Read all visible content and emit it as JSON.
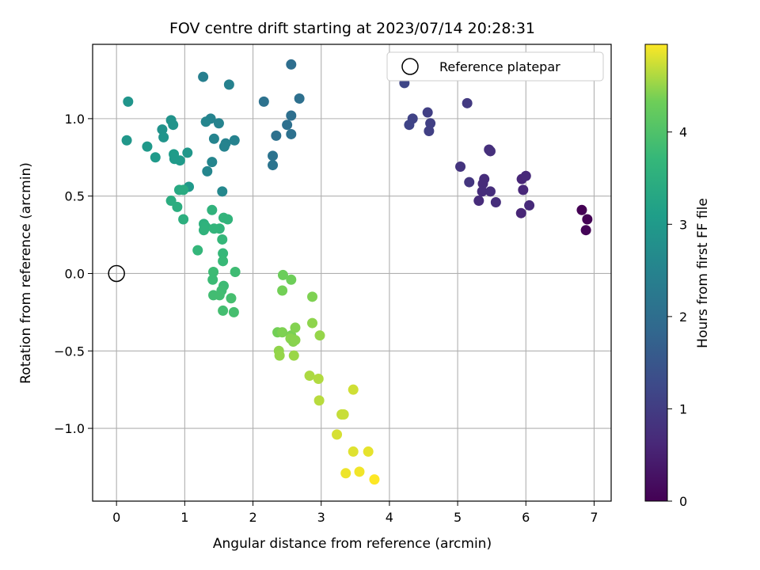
{
  "chart_data": {
    "type": "scatter",
    "title": "FOV centre drift starting at 2023/07/14 20:28:31",
    "xlabel": "Angular distance from reference (arcmin)",
    "ylabel": "Rotation from reference (arcmin)",
    "xlim": [
      -0.35,
      7.25
    ],
    "ylim": [
      -1.47,
      1.48
    ],
    "x_ticks": [
      0,
      1,
      2,
      3,
      4,
      5,
      6,
      7
    ],
    "x_tick_labels": [
      "0",
      "1",
      "2",
      "3",
      "4",
      "5",
      "6",
      "7"
    ],
    "y_ticks": [
      -1.0,
      -0.5,
      0.0,
      0.5,
      1.0
    ],
    "y_tick_labels": [
      "−1.0",
      "−0.5",
      "0.0",
      "0.5",
      "1.0"
    ],
    "grid": true,
    "legend": {
      "placement": "top-right",
      "entries": [
        "Reference platepar"
      ]
    },
    "reference_point": {
      "x": 0,
      "y": 0,
      "marker": "open-circle"
    },
    "colorbar": {
      "label": "Hours from first FF file",
      "colormap": "viridis",
      "range": [
        0,
        4.95
      ],
      "ticks": [
        0,
        1,
        2,
        3,
        4
      ],
      "tick_labels": [
        "0",
        "1",
        "2",
        "3",
        "4"
      ]
    },
    "series": [
      {
        "points": [
          [
            6.82,
            0.41,
            0.0
          ],
          [
            6.9,
            0.35,
            0.02
          ],
          [
            6.88,
            0.28,
            0.05
          ],
          [
            5.94,
            0.61,
            0.6
          ],
          [
            6.0,
            0.63,
            0.65
          ],
          [
            5.96,
            0.54,
            0.62
          ],
          [
            5.93,
            0.39,
            0.58
          ],
          [
            6.05,
            0.44,
            0.66
          ],
          [
            5.46,
            0.8,
            0.75
          ],
          [
            5.48,
            0.79,
            0.77
          ],
          [
            5.39,
            0.61,
            0.72
          ],
          [
            5.37,
            0.58,
            0.7
          ],
          [
            5.36,
            0.53,
            0.71
          ],
          [
            5.48,
            0.53,
            0.73
          ],
          [
            5.31,
            0.47,
            0.69
          ],
          [
            5.56,
            0.46,
            0.74
          ],
          [
            5.04,
            0.69,
            0.85
          ],
          [
            5.17,
            0.59,
            0.88
          ],
          [
            5.14,
            1.1,
            0.95
          ],
          [
            4.56,
            1.04,
            1.05
          ],
          [
            4.6,
            0.97,
            1.07
          ],
          [
            4.58,
            0.92,
            1.06
          ],
          [
            4.34,
            1.0,
            1.12
          ],
          [
            4.29,
            0.96,
            1.15
          ],
          [
            4.22,
            1.23,
            1.18
          ],
          [
            2.56,
            1.35,
            2.0
          ],
          [
            2.68,
            1.13,
            2.05
          ],
          [
            2.56,
            1.02,
            2.02
          ],
          [
            2.5,
            0.96,
            2.05
          ],
          [
            2.34,
            0.89,
            2.08
          ],
          [
            2.56,
            0.9,
            2.07
          ],
          [
            2.16,
            1.11,
            2.1
          ],
          [
            2.29,
            0.76,
            2.12
          ],
          [
            2.29,
            0.7,
            2.15
          ],
          [
            1.27,
            1.27,
            2.4
          ],
          [
            1.65,
            1.22,
            2.45
          ],
          [
            1.38,
            1.0,
            2.5
          ],
          [
            1.31,
            0.98,
            2.55
          ],
          [
            1.5,
            0.97,
            2.5
          ],
          [
            1.43,
            0.87,
            2.52
          ],
          [
            1.6,
            0.84,
            2.48
          ],
          [
            1.73,
            0.86,
            2.47
          ],
          [
            1.58,
            0.82,
            2.5
          ],
          [
            1.4,
            0.72,
            2.55
          ],
          [
            1.33,
            0.66,
            2.56
          ],
          [
            1.55,
            0.53,
            2.6
          ],
          [
            0.17,
            1.11,
            2.9
          ],
          [
            0.8,
            0.99,
            2.85
          ],
          [
            0.67,
            0.93,
            2.83
          ],
          [
            0.83,
            0.96,
            2.87
          ],
          [
            0.69,
            0.88,
            2.88
          ],
          [
            0.15,
            0.86,
            2.95
          ],
          [
            0.45,
            0.82,
            2.98
          ],
          [
            0.57,
            0.75,
            3.0
          ],
          [
            0.84,
            0.77,
            3.05
          ],
          [
            0.85,
            0.74,
            3.03
          ],
          [
            0.93,
            0.73,
            3.02
          ],
          [
            1.04,
            0.78,
            2.95
          ],
          [
            1.06,
            0.56,
            2.98
          ],
          [
            0.92,
            0.54,
            3.35
          ],
          [
            0.98,
            0.54,
            3.4
          ],
          [
            0.8,
            0.47,
            3.45
          ],
          [
            0.89,
            0.43,
            3.47
          ],
          [
            0.98,
            0.35,
            3.5
          ],
          [
            1.4,
            0.41,
            3.6
          ],
          [
            1.57,
            0.36,
            3.65
          ],
          [
            1.63,
            0.35,
            3.62
          ],
          [
            1.28,
            0.32,
            3.55
          ],
          [
            1.31,
            0.3,
            3.58
          ],
          [
            1.28,
            0.28,
            3.6
          ],
          [
            1.51,
            0.29,
            3.62
          ],
          [
            1.43,
            0.29,
            3.65
          ],
          [
            1.55,
            0.22,
            3.7
          ],
          [
            1.19,
            0.15,
            3.68
          ],
          [
            1.56,
            0.13,
            3.72
          ],
          [
            1.56,
            0.08,
            3.75
          ],
          [
            1.42,
            0.01,
            3.8
          ],
          [
            1.74,
            0.01,
            3.82
          ],
          [
            1.41,
            -0.04,
            3.78
          ],
          [
            1.57,
            -0.08,
            3.8
          ],
          [
            1.54,
            -0.11,
            3.83
          ],
          [
            1.42,
            -0.14,
            3.85
          ],
          [
            1.51,
            -0.14,
            3.86
          ],
          [
            1.68,
            -0.16,
            3.9
          ],
          [
            1.56,
            -0.24,
            3.88
          ],
          [
            1.72,
            -0.25,
            3.9
          ],
          [
            2.44,
            -0.01,
            4.3
          ],
          [
            2.56,
            -0.04,
            4.32
          ],
          [
            2.43,
            -0.11,
            4.35
          ],
          [
            2.87,
            -0.15,
            4.4
          ],
          [
            2.36,
            -0.38,
            4.35
          ],
          [
            2.43,
            -0.38,
            4.4
          ],
          [
            2.56,
            -0.4,
            4.38
          ],
          [
            2.62,
            -0.35,
            4.42
          ],
          [
            2.55,
            -0.42,
            4.45
          ],
          [
            2.59,
            -0.44,
            4.43
          ],
          [
            2.62,
            -0.43,
            4.45
          ],
          [
            2.87,
            -0.32,
            4.47
          ],
          [
            2.98,
            -0.4,
            4.5
          ],
          [
            2.38,
            -0.5,
            4.48
          ],
          [
            2.39,
            -0.53,
            4.5
          ],
          [
            2.6,
            -0.53,
            4.52
          ],
          [
            2.83,
            -0.66,
            4.6
          ],
          [
            2.96,
            -0.68,
            4.62
          ],
          [
            2.97,
            -0.82,
            4.65
          ],
          [
            3.3,
            -0.91,
            4.7
          ],
          [
            3.33,
            -0.91,
            4.72
          ],
          [
            3.47,
            -0.75,
            4.75
          ],
          [
            3.23,
            -1.04,
            4.78
          ],
          [
            3.47,
            -1.15,
            4.82
          ],
          [
            3.69,
            -1.15,
            4.85
          ],
          [
            3.36,
            -1.29,
            4.88
          ],
          [
            3.56,
            -1.28,
            4.9
          ],
          [
            3.78,
            -1.33,
            4.95
          ]
        ]
      }
    ]
  }
}
